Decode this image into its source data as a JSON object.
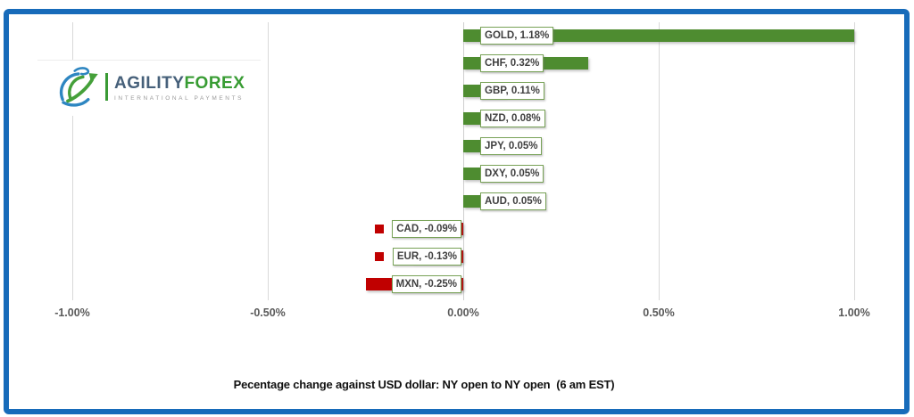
{
  "logo": {
    "icon": "globe-arrow-icon",
    "brand_primary": "AGILITY",
    "brand_secondary": "FOREX",
    "tagline": "INTERNATIONAL PAYMENTS"
  },
  "chart_data": {
    "type": "bar",
    "orientation": "horizontal",
    "title": "Pecentage change against USD dollar: NY open to NY open  (6 am EST)",
    "categories": [
      "GOLD",
      "CHF",
      "GBP",
      "NZD",
      "JPY",
      "DXY",
      "AUD",
      "CAD",
      "EUR",
      "MXN"
    ],
    "values": [
      1.18,
      0.32,
      0.11,
      0.08,
      0.05,
      0.05,
      0.05,
      -0.09,
      -0.13,
      -0.25
    ],
    "data_labels": [
      "GOLD, 1.18%",
      "CHF, 0.32%",
      "GBP, 0.11%",
      "NZD, 0.08%",
      "JPY, 0.05%",
      "DXY, 0.05%",
      "AUD, 0.05%",
      "CAD, -0.09%",
      "EUR, -0.13%",
      "MXN, -0.25%"
    ],
    "x_axis": {
      "tick_labels": [
        "-1.00%",
        "-0.50%",
        "0.00%",
        "0.50%",
        "1.00%"
      ],
      "tick_values": [
        -1,
        -0.5,
        0,
        0.5,
        1
      ],
      "range": [
        -1.0,
        1.0
      ]
    },
    "grid": true,
    "legend_position": "none",
    "colors": {
      "positive": "#4e8c30",
      "negative": "#c00000",
      "label_border": "#78a257",
      "gridline": "#d9d9d9",
      "axis_text": "#595959",
      "frame": "#176bba"
    }
  }
}
